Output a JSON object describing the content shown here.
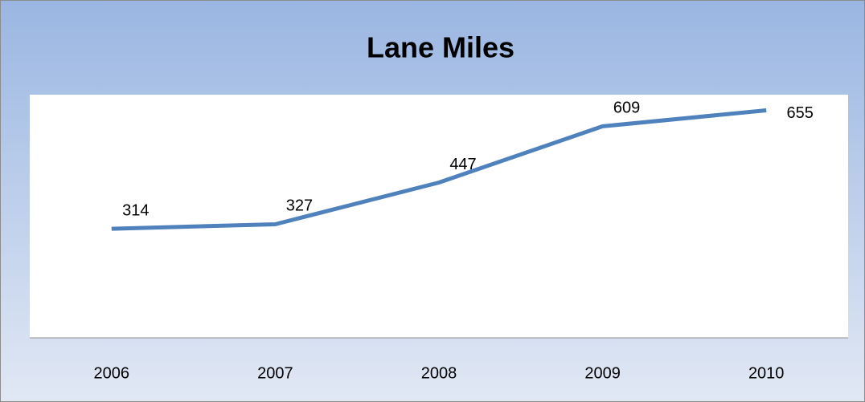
{
  "chart_data": {
    "type": "line",
    "title": "Lane Miles",
    "categories": [
      "2006",
      "2007",
      "2008",
      "2009",
      "2010"
    ],
    "values": [
      314,
      327,
      447,
      609,
      655
    ],
    "color": "#4f81bd",
    "ylim": [
      0,
      700
    ]
  }
}
